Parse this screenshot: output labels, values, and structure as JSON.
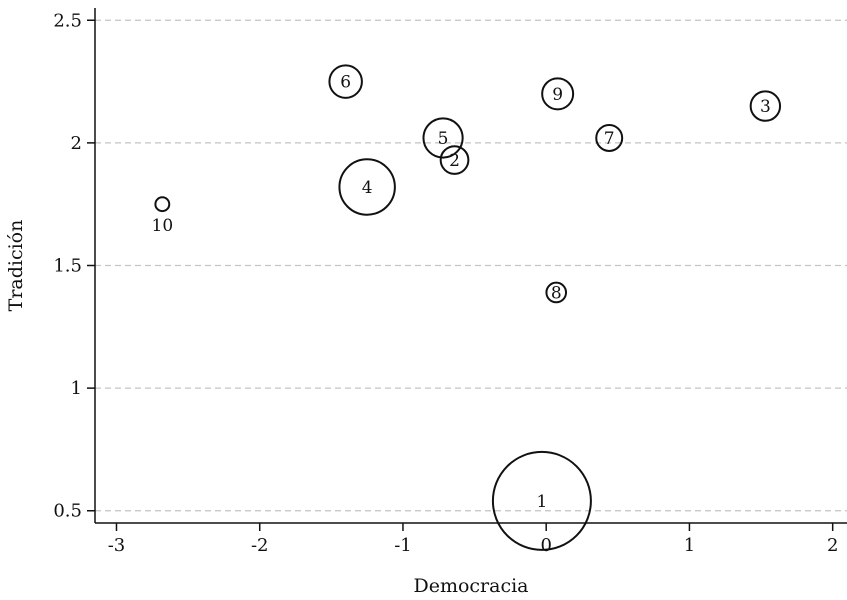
{
  "chart_data": {
    "type": "scatter",
    "title": "",
    "xlabel": "Democracia",
    "ylabel": "Tradición",
    "xlim": [
      -3.15,
      2.1
    ],
    "ylim": [
      0.45,
      2.55
    ],
    "xticks": [
      -3,
      -2,
      -1,
      0,
      1,
      2
    ],
    "xtick_labels": [
      "-3",
      "-2",
      "-1",
      "0",
      "1",
      "2"
    ],
    "yticks": [
      0.5,
      1,
      1.5,
      2,
      2.5
    ],
    "ytick_labels": [
      "0.5",
      "1",
      "1.5",
      "2",
      "2.5"
    ],
    "grid": "horizontal dashed",
    "marker": "hollow circles sized by weight",
    "points": [
      {
        "label": "1",
        "x": -0.03,
        "y": 0.54,
        "size": 100
      },
      {
        "label": "2",
        "x": -0.64,
        "y": 1.93,
        "size": 8
      },
      {
        "label": "3",
        "x": 1.53,
        "y": 2.15,
        "size": 9
      },
      {
        "label": "4",
        "x": -1.25,
        "y": 1.82,
        "size": 32
      },
      {
        "label": "5",
        "x": -0.72,
        "y": 2.02,
        "size": 16
      },
      {
        "label": "6",
        "x": -1.4,
        "y": 2.25,
        "size": 11
      },
      {
        "label": "7",
        "x": 0.44,
        "y": 2.02,
        "size": 7
      },
      {
        "label": "8",
        "x": 0.07,
        "y": 1.39,
        "size": 4
      },
      {
        "label": "9",
        "x": 0.08,
        "y": 2.2,
        "size": 10
      },
      {
        "label": "10",
        "x": -2.68,
        "y": 1.75,
        "size": 2
      }
    ]
  }
}
